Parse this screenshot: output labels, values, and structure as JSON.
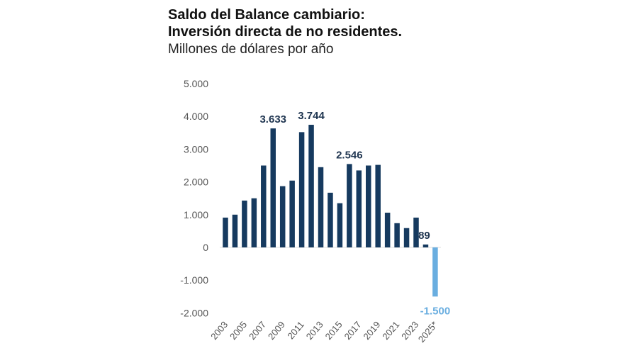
{
  "chart_data": {
    "type": "bar",
    "title": "Saldo del Balance cambiario:",
    "title_line2": "Inversión directa de no residentes.",
    "subtitle": "Millones de dólares por año",
    "categories": [
      "2003",
      "2004",
      "2005",
      "2006",
      "2007",
      "2008",
      "2009",
      "2010",
      "2011",
      "2012",
      "2013",
      "2014",
      "2015",
      "2016",
      "2017",
      "2018",
      "2019",
      "2020",
      "2021",
      "2022",
      "2023",
      "2024",
      "2025*"
    ],
    "x_tick_labels": [
      "2003",
      "2005",
      "2007",
      "2009",
      "2011",
      "2013",
      "2015",
      "2017",
      "2019",
      "2021",
      "2023",
      "2025*"
    ],
    "values": [
      910,
      1000,
      1430,
      1500,
      2500,
      3633,
      1870,
      2040,
      3520,
      3744,
      2450,
      1670,
      1350,
      2546,
      2350,
      2500,
      2520,
      1060,
      740,
      590,
      910,
      89,
      -1500
    ],
    "data_labels": {
      "2008": "3.633",
      "2012": "3.744",
      "2016": "2.546",
      "2024": "89",
      "2025*": "-1.500"
    },
    "ylim": [
      -2000,
      5000
    ],
    "y_ticks": [
      5000,
      4000,
      3000,
      2000,
      1000,
      0,
      -1000,
      -2000
    ],
    "y_tick_labels": [
      "5.000",
      "4.000",
      "3.000",
      "2.000",
      "1.000",
      "0",
      "-1.000",
      "-2.000"
    ],
    "grid": false,
    "colors": {
      "positive": "#163a5f",
      "negative": "#6aaee0",
      "label": "#1f3550",
      "axis_text": "#555555"
    }
  }
}
